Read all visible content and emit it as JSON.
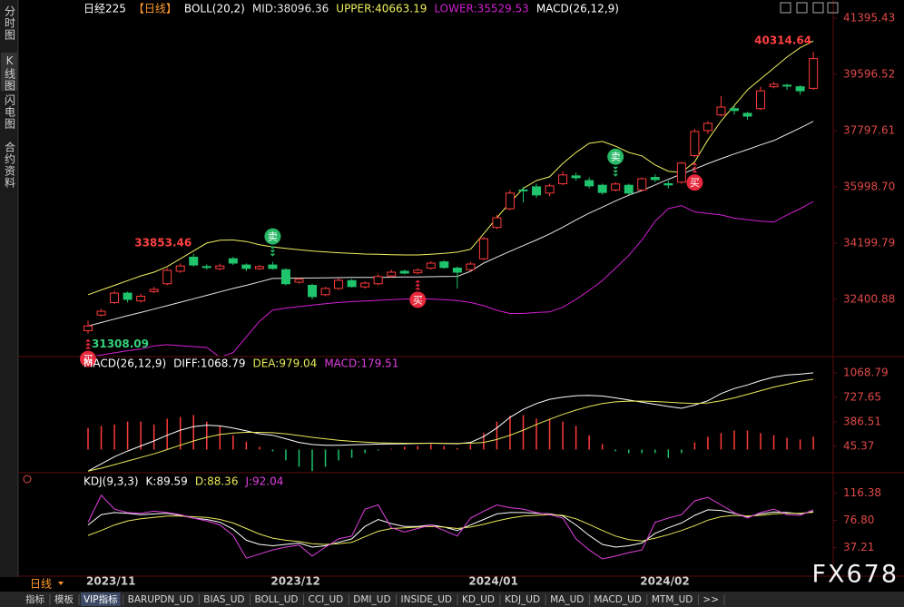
{
  "sidebar": [
    "分时图",
    "K线图",
    "闪电图",
    "合约资料"
  ],
  "period": "日线",
  "watermark": "FX678",
  "tabs": [
    "指标",
    "模板",
    "VIP指标",
    "BARUPDN_UD",
    "BIAS_UD",
    "BOLL_UD",
    "CCI_UD",
    "DMI_UD",
    "INSIDE_UD",
    "KD_UD",
    "KDJ_UD",
    "MA_UD",
    "MACD_UD",
    "MTM_UD",
    ">>"
  ],
  "active_tab": 2,
  "chart_data": [
    {
      "type": "candlestick",
      "title": "日经225",
      "subtitle": "【日线】",
      "overlay_title": "BOLL(20,2)",
      "extra_legend": "MACD(26,12,9)",
      "categories": [
        "2023/11",
        null,
        null,
        null,
        null,
        null,
        null,
        null,
        null,
        null,
        null,
        null,
        null,
        null,
        "2023/12",
        null,
        null,
        null,
        null,
        null,
        null,
        null,
        null,
        null,
        null,
        null,
        null,
        null,
        null,
        "2024/01",
        null,
        null,
        null,
        null,
        null,
        null,
        null,
        null,
        null,
        null,
        null,
        null,
        "2024/02",
        null,
        null,
        null,
        null,
        null,
        null,
        null,
        null,
        null,
        null,
        null,
        null,
        null
      ],
      "ohlc": [
        [
          31400,
          31720,
          31308.09,
          31550
        ],
        [
          31900,
          32100,
          31850,
          32020
        ],
        [
          32300,
          32680,
          32250,
          32600
        ],
        [
          32600,
          32650,
          32300,
          32400
        ],
        [
          32350,
          32580,
          32300,
          32500
        ],
        [
          32650,
          32800,
          32600,
          32720
        ],
        [
          32900,
          33400,
          32850,
          33330
        ],
        [
          33300,
          33550,
          33250,
          33470
        ],
        [
          33750,
          33853.46,
          33450,
          33500
        ],
        [
          33450,
          33520,
          33350,
          33420
        ],
        [
          33380,
          33540,
          33330,
          33470
        ],
        [
          33700,
          33760,
          33500,
          33560
        ],
        [
          33500,
          33550,
          33300,
          33390
        ],
        [
          33380,
          33500,
          33340,
          33450
        ],
        [
          33500,
          33600,
          33350,
          33390
        ],
        [
          33350,
          33400,
          32850,
          32900
        ],
        [
          32950,
          33100,
          32900,
          33040
        ],
        [
          32850,
          32900,
          32400,
          32490
        ],
        [
          32550,
          32800,
          32500,
          32750
        ],
        [
          32750,
          33080,
          32700,
          33010
        ],
        [
          33000,
          33050,
          32780,
          32810
        ],
        [
          32800,
          32980,
          32750,
          32920
        ],
        [
          32900,
          33200,
          32850,
          33130
        ],
        [
          33150,
          33350,
          33100,
          33270
        ],
        [
          33300,
          33350,
          33200,
          33240
        ],
        [
          33250,
          33400,
          33200,
          33330
        ],
        [
          33400,
          33620,
          33350,
          33560
        ],
        [
          33600,
          33650,
          33380,
          33420
        ],
        [
          33400,
          33450,
          32750,
          33270
        ],
        [
          33350,
          33600,
          33300,
          33530
        ],
        [
          33700,
          34400,
          33650,
          34340
        ],
        [
          34700,
          35100,
          34650,
          35010
        ],
        [
          35300,
          35900,
          35250,
          35800
        ],
        [
          35900,
          36000,
          35500,
          35880
        ],
        [
          36000,
          36100,
          35650,
          35740
        ],
        [
          35800,
          36100,
          35700,
          36030
        ],
        [
          36100,
          36500,
          36050,
          36380
        ],
        [
          36350,
          36450,
          36200,
          36290
        ],
        [
          36200,
          36300,
          35950,
          36030
        ],
        [
          36050,
          36100,
          35750,
          35820
        ],
        [
          35900,
          36150,
          35850,
          36090
        ],
        [
          36050,
          36100,
          35750,
          35800
        ],
        [
          35900,
          36300,
          35850,
          36260
        ],
        [
          36300,
          36400,
          36150,
          36230
        ],
        [
          36100,
          36200,
          35950,
          36060
        ],
        [
          36150,
          36800,
          36100,
          36760
        ],
        [
          37000,
          37850,
          36950,
          37770
        ],
        [
          37800,
          38100,
          37700,
          38030
        ],
        [
          38300,
          38900,
          38250,
          38550
        ],
        [
          38500,
          38600,
          38300,
          38440
        ],
        [
          38350,
          38400,
          38150,
          38260
        ],
        [
          38500,
          39200,
          38450,
          39070
        ],
        [
          39200,
          39350,
          39150,
          39280
        ],
        [
          39250,
          39300,
          39100,
          39220
        ],
        [
          39200,
          39250,
          38950,
          39070
        ],
        [
          39150,
          40314.64,
          39100,
          40100
        ]
      ],
      "up_color": "#ff3b3b",
      "down_color": "#1fc46c",
      "high_labels": [
        8,
        55
      ],
      "high_label_color": "#ff4040",
      "low_labels": [
        0
      ],
      "low_label_color": "#35d07a",
      "sell_signals": {
        "label": "卖",
        "color": "#27b865",
        "at": [
          14,
          40
        ]
      },
      "buy_signals": {
        "label": "买",
        "color": "#e8283c",
        "at": [
          0,
          25,
          46
        ]
      },
      "series": [
        {
          "name": "MID:38096.36",
          "color": "#e6e6e6",
          "values": [
            31550,
            31660,
            31770,
            31880,
            31980,
            32090,
            32200,
            32310,
            32420,
            32530,
            32640,
            32750,
            32850,
            32960,
            33070,
            33075,
            33080,
            33085,
            33090,
            33095,
            33100,
            33100,
            33105,
            33110,
            33115,
            33120,
            33125,
            33130,
            33135,
            33300,
            33560,
            33750,
            33940,
            34120,
            34300,
            34490,
            34710,
            34940,
            35160,
            35350,
            35550,
            35730,
            35880,
            36060,
            36240,
            36410,
            36570,
            36740,
            36900,
            37050,
            37190,
            37340,
            37480,
            37680,
            37880,
            38096.36
          ]
        },
        {
          "name": "UPPER:40663.19",
          "color": "#f0f060",
          "values": [
            32550,
            32700,
            32850,
            33000,
            33150,
            33270,
            33450,
            33700,
            33950,
            34200,
            34290,
            34300,
            34250,
            34150,
            34080,
            34030,
            33990,
            33950,
            33920,
            33890,
            33870,
            33850,
            33840,
            33830,
            33820,
            33820,
            33840,
            33870,
            33910,
            34000,
            34500,
            35010,
            35500,
            35950,
            36200,
            36320,
            36750,
            37100,
            37390,
            37450,
            37300,
            37100,
            36990,
            36700,
            36500,
            36460,
            36800,
            37500,
            38100,
            38600,
            39100,
            39450,
            39800,
            40150,
            40450,
            40663.19
          ]
        },
        {
          "name": "LOWER:35529.53",
          "color": "#d21ed2",
          "values": [
            30550,
            30620,
            30690,
            30760,
            30810,
            30910,
            30950,
            30920,
            30890,
            30860,
            30550,
            30700,
            31200,
            31700,
            32060,
            32120,
            32170,
            32220,
            32260,
            32300,
            32330,
            32350,
            32370,
            32390,
            32410,
            32420,
            32410,
            32390,
            32360,
            32300,
            32200,
            32050,
            31950,
            31950,
            31980,
            32000,
            32150,
            32400,
            32690,
            33000,
            33400,
            33800,
            34300,
            34900,
            35300,
            35400,
            35200,
            35150,
            35100,
            35000,
            34950,
            34900,
            34870,
            35100,
            35300,
            35529.53
          ]
        }
      ],
      "ylim": [
        30600,
        41975
      ],
      "yticks": [
        41395.43,
        39596.52,
        37797.61,
        {
          "value": 35998.7,
          "label": "35998.70"
        },
        34199.79,
        32400.88
      ]
    },
    {
      "type": "macd",
      "title": "MACD(26,12,9)",
      "series": [
        {
          "name": "DIFF:1068.79",
          "color": "#ffffff",
          "values": [
            -300,
            -200,
            -100,
            -20,
            50,
            120,
            200,
            270,
            320,
            340,
            330,
            300,
            260,
            220,
            200,
            150,
            100,
            70,
            60,
            60,
            65,
            70,
            75,
            78,
            80,
            85,
            90,
            85,
            80,
            100,
            180,
            300,
            450,
            560,
            640,
            700,
            730,
            750,
            755,
            745,
            720,
            690,
            660,
            630,
            600,
            575,
            620,
            680,
            780,
            850,
            900,
            960,
            1010,
            1040,
            1050,
            1068.79
          ]
        },
        {
          "name": "DEA:979.04",
          "color": "#e8e85a",
          "values": [
            -300,
            -260,
            -210,
            -160,
            -110,
            -60,
            0,
            60,
            120,
            170,
            210,
            230,
            240,
            240,
            235,
            220,
            195,
            170,
            150,
            130,
            115,
            105,
            95,
            90,
            88,
            87,
            87,
            87,
            86,
            88,
            100,
            140,
            200,
            270,
            350,
            420,
            490,
            550,
            600,
            640,
            665,
            675,
            675,
            670,
            660,
            650,
            640,
            650,
            680,
            720,
            770,
            820,
            870,
            910,
            950,
            979.04
          ]
        }
      ],
      "bars": {
        "name": "MACD:179.51",
        "legend_color": "#e040e0",
        "up_color": "#ff3b3b",
        "down_color": "#1fc46c",
        "values": [
          300,
          330,
          350,
          390,
          390,
          350,
          430,
          455,
          480,
          390,
          330,
          200,
          110,
          40,
          -25,
          -150,
          -240,
          -300,
          -240,
          -150,
          -115,
          -50,
          -15,
          10,
          40,
          50,
          75,
          50,
          20,
          75,
          230,
          390,
          470,
          480,
          430,
          430,
          390,
          330,
          200,
          75,
          -25,
          -50,
          -50,
          -50,
          -115,
          -50,
          100,
          180,
          230,
          265,
          265,
          230,
          200,
          165,
          140,
          179.51
        ]
      },
      "ylim": [
        -310,
        1270
      ],
      "yticks": [
        1068.79,
        727.65,
        386.51,
        45.37
      ]
    },
    {
      "type": "kdj",
      "title": "KDJ(9,3,3)",
      "series": [
        {
          "name": "K:89.59",
          "color": "#ffffff",
          "values": [
            70,
            85,
            88,
            87,
            85,
            86,
            87,
            84,
            80,
            78,
            74,
            64,
            48,
            42,
            40,
            42,
            44,
            38,
            40,
            45,
            50,
            68,
            78,
            72,
            68,
            68,
            70,
            67,
            62,
            70,
            78,
            86,
            88,
            88,
            87,
            86,
            83,
            70,
            55,
            42,
            38,
            40,
            44,
            58,
            66,
            73,
            84,
            92,
            91,
            87,
            82,
            86,
            89,
            88,
            86,
            89.59
          ]
        },
        {
          "name": "D:88.36",
          "color": "#e8e85a",
          "values": [
            55,
            62,
            70,
            76,
            79,
            81,
            83,
            83,
            82,
            81,
            78,
            73,
            65,
            57,
            51,
            48,
            46,
            43,
            42,
            43,
            45,
            53,
            61,
            65,
            66,
            67,
            68,
            67,
            65,
            67,
            71,
            76,
            80,
            83,
            84,
            85,
            84,
            79,
            71,
            62,
            54,
            49,
            47,
            51,
            56,
            62,
            69,
            77,
            82,
            84,
            83,
            84,
            86,
            87,
            87,
            88.36
          ]
        },
        {
          "name": "J:92.04",
          "color": "#e040e0",
          "values": [
            74,
            113,
            93,
            88,
            87,
            90,
            88,
            85,
            80,
            76,
            70,
            55,
            22,
            28,
            34,
            38,
            41,
            25,
            38,
            50,
            54,
            93,
            99,
            66,
            60,
            65,
            70,
            62,
            54,
            80,
            90,
            99,
            95,
            93,
            88,
            85,
            80,
            50,
            34,
            21,
            25,
            30,
            34,
            74,
            80,
            85,
            105,
            110,
            99,
            88,
            80,
            88,
            93,
            85,
            84,
            92.04
          ]
        }
      ],
      "ylim": [
        0,
        143
      ],
      "yticks": [
        116.38,
        {
          "value": 76.8,
          "label": "76.80"
        },
        37.21
      ]
    }
  ]
}
